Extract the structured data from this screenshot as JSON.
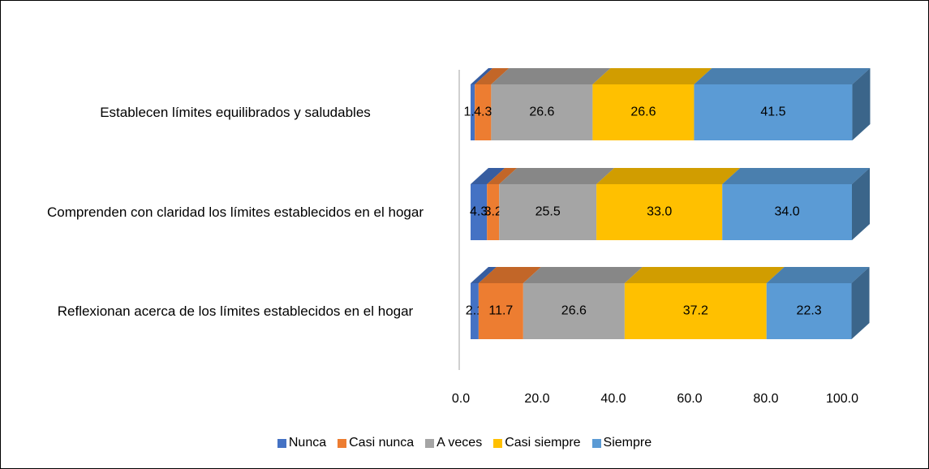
{
  "chart_data": {
    "type": "stacked-bar-3d",
    "categories": [
      "Establecen límites equilibrados y saludables",
      "Comprenden con claridad los límites establecidos en el hogar",
      "Reflexionan acerca de los límites establecidos en el hogar"
    ],
    "series": [
      {
        "name": "Nunca",
        "color": "#4472c4",
        "values": [
          1.1,
          4.3,
          2.1
        ],
        "value_labels": [
          "1.1",
          "4.3",
          "2.1"
        ]
      },
      {
        "name": "Casi nunca",
        "color": "#ed7d31",
        "values": [
          4.3,
          3.2,
          11.7
        ],
        "value_labels": [
          "4.3",
          "3.2",
          "11.7"
        ]
      },
      {
        "name": "A veces",
        "color": "#a5a5a5",
        "values": [
          26.6,
          25.5,
          26.6
        ],
        "value_labels": [
          "26.6",
          "25.5",
          "26.6"
        ]
      },
      {
        "name": "Casi siempre",
        "color": "#ffc000",
        "values": [
          26.6,
          33,
          37.2
        ],
        "value_labels": [
          "26.6",
          "33.0",
          "37.2"
        ]
      },
      {
        "name": "Siempre",
        "color": "#5b9bd5",
        "values": [
          41.5,
          34,
          22.3
        ],
        "value_labels": [
          "41.5",
          "34.0",
          "22.3"
        ]
      }
    ],
    "xlim": [
      0,
      100
    ],
    "xticks": [
      {
        "value": 0,
        "label": "0.0"
      },
      {
        "value": 20,
        "label": "20.0"
      },
      {
        "value": 40,
        "label": "40.0"
      },
      {
        "value": 60,
        "label": "60.0"
      },
      {
        "value": 80,
        "label": "80.0"
      },
      {
        "value": 100,
        "label": "100.0"
      }
    ],
    "legend": "bottom"
  }
}
